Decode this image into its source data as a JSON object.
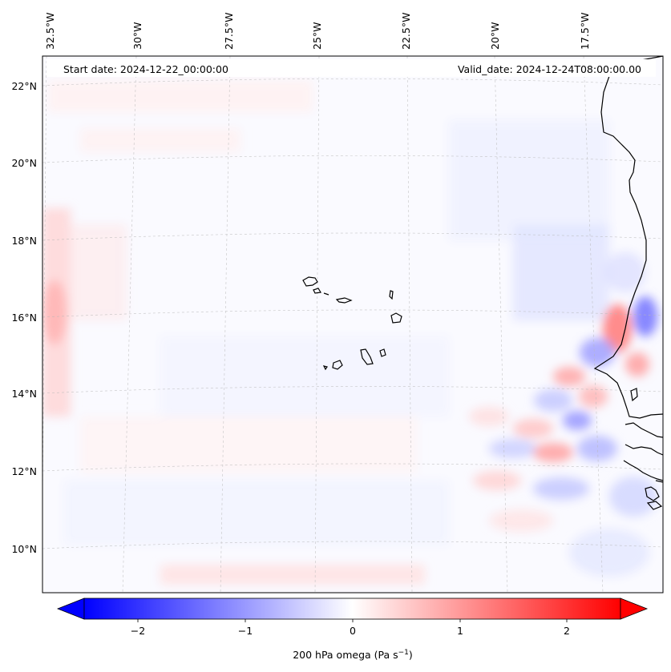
{
  "map": {
    "start_date": "Start date: 2024-12-22_00:00:00",
    "valid_date": "Valid_date: 2024-12-24T08:00:00.00",
    "lon_labels": [
      "32.5°W",
      "30°W",
      "27.5°W",
      "25°W",
      "22.5°W",
      "20°W",
      "17.5°W"
    ],
    "lat_labels": [
      "22°N",
      "20°N",
      "18°N",
      "16°N",
      "14°N",
      "12°N",
      "10°N"
    ],
    "gridlines": "dashed light grey",
    "coastline_color": "#000000"
  },
  "colorbar": {
    "label": "200 hPa omega (Pa s",
    "label_exponent": "−1",
    "label_suffix": ")",
    "ticks": [
      "−2",
      "−1",
      "0",
      "1",
      "2"
    ],
    "range": [
      -2.5,
      2.5
    ],
    "colormap": "bwr",
    "neg_color": "#0000ff",
    "mid_color": "#ffffff",
    "pos_color": "#ff0000",
    "extend": "both"
  }
}
